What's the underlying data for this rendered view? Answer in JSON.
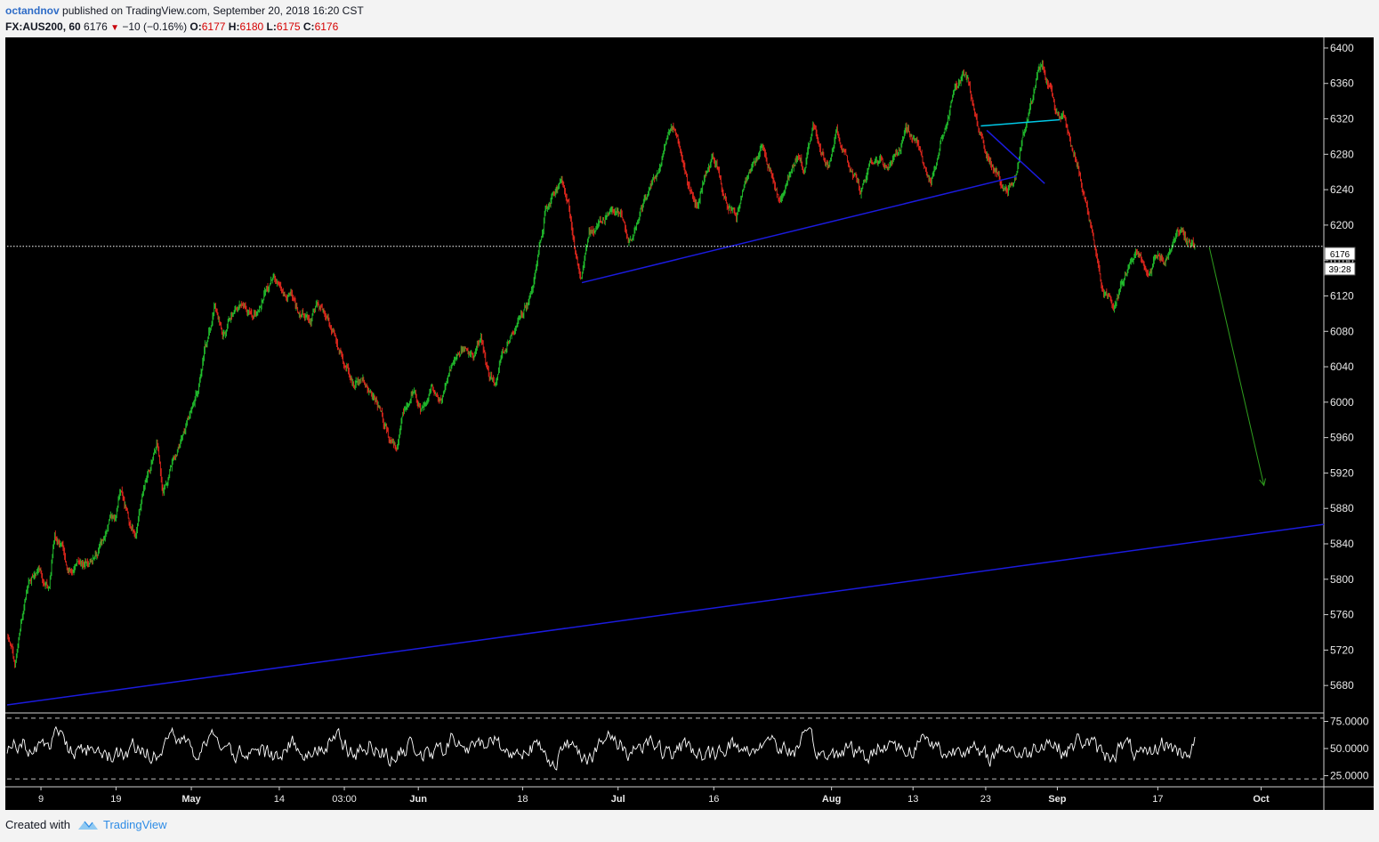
{
  "header": {
    "author": "octandnov",
    "published_text": "published on TradingView.com, September 20, 2018 16:20 CST",
    "symbol": "FX:AUS200, 60",
    "last": "6176",
    "change": "−10 (−0.16%)",
    "o_label": "O:",
    "o_value": "6177",
    "h_label": "H:",
    "h_value": "6180",
    "l_label": "L:",
    "l_value": "6175",
    "c_label": "C:",
    "c_value": "6176"
  },
  "price_label": "6176",
  "countdown_label": "39:28",
  "footer": {
    "created_with": "Created with",
    "brand": "TradingView",
    "logo_icon": "tradingview-logo-icon"
  },
  "colors": {
    "up": "#22c22e",
    "down": "#e8281e",
    "trend": "#1b1bde",
    "cyan": "#00c8e6",
    "arrow": "#2f9e1e",
    "oscillator": "#ffffff"
  },
  "chart_data": [
    {
      "type": "candlestick",
      "symbol": "FX:AUS200",
      "interval": "60",
      "ylim": [
        5650,
        6410
      ],
      "y_ticks": [
        5680,
        5720,
        5760,
        5800,
        5840,
        5880,
        5920,
        5960,
        6000,
        6040,
        6080,
        6120,
        6160,
        6200,
        6240,
        6280,
        6320,
        6360,
        6400
      ],
      "x_tick_labels": [
        "9",
        "19",
        "May",
        "14",
        "03:00",
        "Jun",
        "18",
        "Jul",
        "16",
        "Aug",
        "13",
        "23",
        "Sep",
        "17",
        "Oct"
      ],
      "x_tick_fracs": [
        0.0257,
        0.0827,
        0.1399,
        0.2067,
        0.2561,
        0.3123,
        0.3915,
        0.464,
        0.5367,
        0.6261,
        0.688,
        0.7432,
        0.7976,
        0.8739,
        0.9524
      ],
      "close_path": [
        [
          0.0,
          5740
        ],
        [
          0.006,
          5705
        ],
        [
          0.011,
          5760
        ],
        [
          0.016,
          5800
        ],
        [
          0.024,
          5810
        ],
        [
          0.032,
          5790
        ],
        [
          0.036,
          5850
        ],
        [
          0.043,
          5830
        ],
        [
          0.048,
          5810
        ],
        [
          0.058,
          5820
        ],
        [
          0.068,
          5830
        ],
        [
          0.076,
          5860
        ],
        [
          0.082,
          5870
        ],
        [
          0.086,
          5900
        ],
        [
          0.092,
          5870
        ],
        [
          0.098,
          5855
        ],
        [
          0.104,
          5900
        ],
        [
          0.11,
          5930
        ],
        [
          0.114,
          5950
        ],
        [
          0.118,
          5900
        ],
        [
          0.124,
          5930
        ],
        [
          0.13,
          5950
        ],
        [
          0.136,
          5980
        ],
        [
          0.142,
          6000
        ],
        [
          0.146,
          6020
        ],
        [
          0.15,
          6060
        ],
        [
          0.154,
          6080
        ],
        [
          0.158,
          6110
        ],
        [
          0.164,
          6080
        ],
        [
          0.17,
          6100
        ],
        [
          0.178,
          6110
        ],
        [
          0.186,
          6100
        ],
        [
          0.194,
          6120
        ],
        [
          0.202,
          6140
        ],
        [
          0.21,
          6120
        ],
        [
          0.216,
          6125
        ],
        [
          0.222,
          6100
        ],
        [
          0.23,
          6090
        ],
        [
          0.236,
          6110
        ],
        [
          0.244,
          6090
        ],
        [
          0.25,
          6070
        ],
        [
          0.256,
          6040
        ],
        [
          0.262,
          6020
        ],
        [
          0.27,
          6030
        ],
        [
          0.276,
          6010
        ],
        [
          0.284,
          5990
        ],
        [
          0.29,
          5960
        ],
        [
          0.296,
          5950
        ],
        [
          0.302,
          5990
        ],
        [
          0.308,
          6010
        ],
        [
          0.316,
          5990
        ],
        [
          0.322,
          6020
        ],
        [
          0.33,
          6000
        ],
        [
          0.338,
          6040
        ],
        [
          0.346,
          6060
        ],
        [
          0.354,
          6050
        ],
        [
          0.36,
          6070
        ],
        [
          0.366,
          6030
        ],
        [
          0.372,
          6020
        ],
        [
          0.378,
          6060
        ],
        [
          0.384,
          6080
        ],
        [
          0.39,
          6100
        ],
        [
          0.396,
          6110
        ],
        [
          0.402,
          6150
        ],
        [
          0.408,
          6210
        ],
        [
          0.414,
          6230
        ],
        [
          0.42,
          6250
        ],
        [
          0.426,
          6230
        ],
        [
          0.432,
          6170
        ],
        [
          0.436,
          6140
        ],
        [
          0.442,
          6190
        ],
        [
          0.45,
          6200
        ],
        [
          0.458,
          6220
        ],
        [
          0.466,
          6210
        ],
        [
          0.472,
          6180
        ],
        [
          0.48,
          6210
        ],
        [
          0.488,
          6240
        ],
        [
          0.494,
          6260
        ],
        [
          0.5,
          6290
        ],
        [
          0.506,
          6310
        ],
        [
          0.512,
          6280
        ],
        [
          0.518,
          6240
        ],
        [
          0.524,
          6220
        ],
        [
          0.53,
          6260
        ],
        [
          0.536,
          6280
        ],
        [
          0.542,
          6250
        ],
        [
          0.548,
          6220
        ],
        [
          0.554,
          6210
        ],
        [
          0.56,
          6250
        ],
        [
          0.568,
          6270
        ],
        [
          0.574,
          6290
        ],
        [
          0.58,
          6260
        ],
        [
          0.586,
          6230
        ],
        [
          0.594,
          6260
        ],
        [
          0.6,
          6280
        ],
        [
          0.606,
          6260
        ],
        [
          0.612,
          6320
        ],
        [
          0.618,
          6290
        ],
        [
          0.624,
          6270
        ],
        [
          0.63,
          6300
        ],
        [
          0.636,
          6280
        ],
        [
          0.642,
          6260
        ],
        [
          0.648,
          6240
        ],
        [
          0.654,
          6260
        ],
        [
          0.66,
          6280
        ],
        [
          0.668,
          6260
        ],
        [
          0.676,
          6280
        ],
        [
          0.684,
          6310
        ],
        [
          0.69,
          6290
        ],
        [
          0.696,
          6270
        ],
        [
          0.702,
          6250
        ],
        [
          0.708,
          6290
        ],
        [
          0.714,
          6320
        ],
        [
          0.72,
          6350
        ],
        [
          0.726,
          6370
        ],
        [
          0.73,
          6360
        ],
        [
          0.734,
          6330
        ],
        [
          0.738,
          6310
        ],
        [
          0.742,
          6290
        ],
        [
          0.748,
          6270
        ],
        [
          0.754,
          6250
        ],
        [
          0.76,
          6240
        ],
        [
          0.766,
          6260
        ],
        [
          0.772,
          6300
        ],
        [
          0.778,
          6340
        ],
        [
          0.782,
          6370
        ],
        [
          0.786,
          6380
        ],
        [
          0.79,
          6360
        ],
        [
          0.796,
          6330
        ],
        [
          0.802,
          6320
        ],
        [
          0.808,
          6290
        ],
        [
          0.814,
          6260
        ],
        [
          0.82,
          6220
        ],
        [
          0.826,
          6180
        ],
        [
          0.83,
          6140
        ],
        [
          0.834,
          6120
        ],
        [
          0.84,
          6110
        ],
        [
          0.846,
          6130
        ],
        [
          0.852,
          6160
        ],
        [
          0.858,
          6170
        ],
        [
          0.866,
          6150
        ],
        [
          0.874,
          6170
        ],
        [
          0.88,
          6160
        ],
        [
          0.886,
          6180
        ],
        [
          0.892,
          6200
        ],
        [
          0.896,
          6180
        ],
        [
          0.902,
          6176
        ]
      ],
      "annotations": [
        {
          "kind": "trendline",
          "color": "#1b1bde",
          "from": [
            0.4365,
            6135
          ],
          "to": [
            0.7665,
            6255
          ]
        },
        {
          "kind": "trendline",
          "color": "#1b1bde",
          "from": [
            0.744,
            6307
          ],
          "to": [
            0.788,
            6247
          ]
        },
        {
          "kind": "trendline",
          "color": "#00c8e6",
          "from": [
            0.7395,
            6312
          ],
          "to": [
            0.7995,
            6319
          ]
        },
        {
          "kind": "arrow",
          "color": "#2f9e1e",
          "from": [
            0.913,
            6175
          ],
          "to": [
            0.9545,
            5906
          ]
        },
        {
          "kind": "trendline",
          "color": "#1b1bde",
          "from": [
            0.0,
            5658
          ],
          "to": [
            1.0,
            5862
          ]
        },
        {
          "kind": "horizontal_line",
          "color": "#ffffff",
          "style": "dotted",
          "y": 6176
        }
      ]
    },
    {
      "type": "line",
      "name": "",
      "ylim": [
        18,
        82
      ],
      "y_ticks": [
        25.0,
        50.0,
        75.0
      ],
      "y_tick_labels": [
        "25.0000",
        "50.0000",
        "75.0000"
      ],
      "bands": [
        22,
        78
      ],
      "x_range": [
        0,
        0.902
      ],
      "value_range": [
        22,
        78
      ],
      "mean": 50
    }
  ]
}
